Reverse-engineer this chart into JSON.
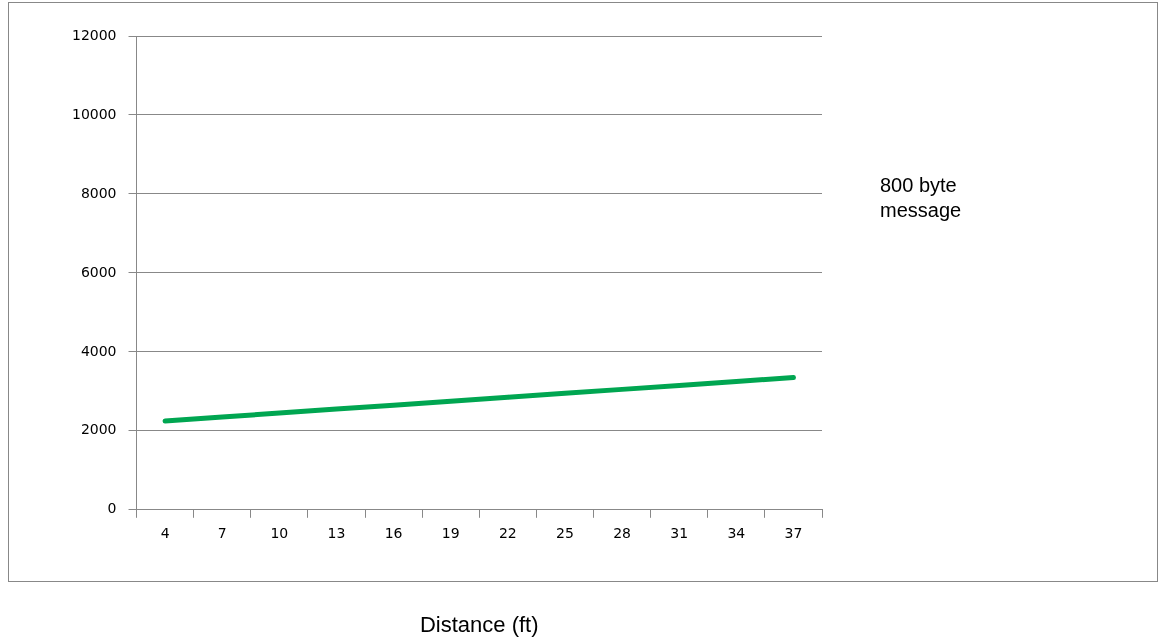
{
  "chart_data": {
    "type": "line",
    "xlabel": "Distance (ft)",
    "annotations": [
      "800 byte message"
    ],
    "categories": [
      "4",
      "7",
      "10",
      "13",
      "16",
      "19",
      "22",
      "25",
      "28",
      "31",
      "34",
      "37"
    ],
    "series": [
      {
        "color": "#00a651",
        "values": [
          2250,
          2350,
          2450,
          2550,
          2650,
          2750,
          2850,
          2950,
          3050,
          3150,
          3250,
          3350
        ]
      }
    ],
    "ylim": [
      0,
      12000
    ],
    "yticks": [
      0,
      2000,
      4000,
      6000,
      8000,
      10000,
      12000
    ],
    "grid": "y",
    "legend": false,
    "marker": "none"
  }
}
